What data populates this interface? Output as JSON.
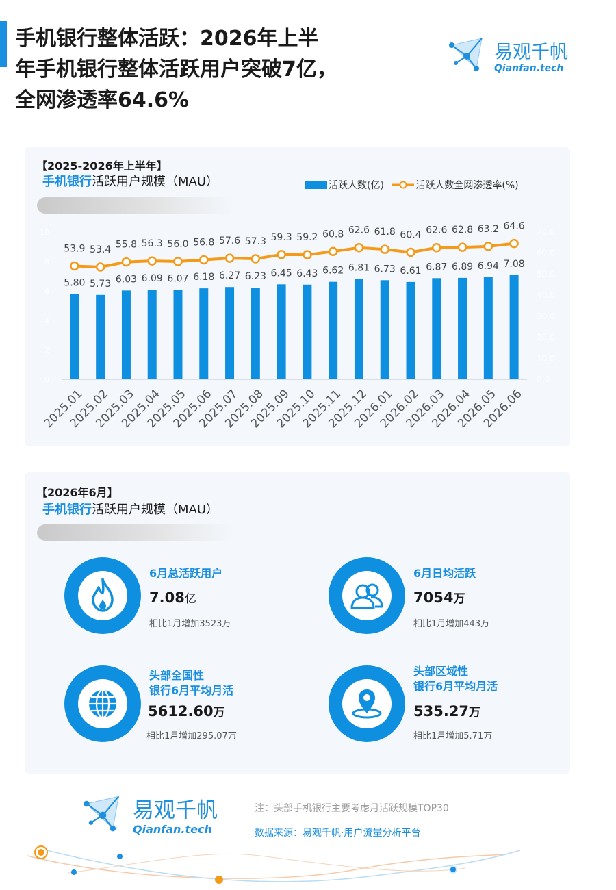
{
  "header": {
    "title_lines": [
      "手机银行整体活跃：2026年上半",
      "年手机银行整体活跃用户突破7亿，",
      "全网渗透率64.6%"
    ]
  },
  "logo": {
    "cn": "易观千帆",
    "en": "Qianfan.tech"
  },
  "panel1": {
    "tag": "【2025-2026年上半年】",
    "subtitle_highlight": "手机银行",
    "subtitle_rest": "活跃用户规模（MAU）"
  },
  "chart_data": {
    "type": "bar",
    "categories": [
      "2025.01",
      "2025.02",
      "2025.03",
      "2025.04",
      "2025.05",
      "2025.06",
      "2025.07",
      "2025.08",
      "2025.09",
      "2025.10",
      "2025.11",
      "2025.12",
      "2026.01",
      "2026.02",
      "2026.03",
      "2026.04",
      "2026.05",
      "2026.06"
    ],
    "series": [
      {
        "name": "活跃人数(亿)",
        "type": "bar",
        "axis": "left",
        "values": [
          5.8,
          5.73,
          6.03,
          6.09,
          6.07,
          6.18,
          6.27,
          6.23,
          6.45,
          6.43,
          6.62,
          6.81,
          6.73,
          6.61,
          6.87,
          6.89,
          6.94,
          7.08
        ],
        "labels": [
          "5.80",
          "5.73",
          "6.03",
          "6.09",
          "6.07",
          "6.18",
          "6.27",
          "6.23",
          "6.45",
          "6.43",
          "6.62",
          "6.81",
          "6.73",
          "6.61",
          "6.87",
          "6.89",
          "6.94",
          "7.08"
        ]
      },
      {
        "name": "活跃人数全网渗透率(%)",
        "type": "line",
        "axis": "right",
        "values": [
          53.9,
          53.4,
          55.8,
          56.3,
          56.0,
          56.8,
          57.6,
          57.3,
          59.3,
          59.2,
          60.8,
          62.6,
          61.8,
          60.4,
          62.6,
          62.8,
          63.2,
          64.6
        ],
        "labels": [
          "53.9",
          "53.4",
          "55.8",
          "56.3",
          "56.0",
          "56.8",
          "57.6",
          "57.3",
          "59.3",
          "59.2",
          "60.8",
          "62.6",
          "61.8",
          "60.4",
          "62.6",
          "62.8",
          "63.2",
          "64.6"
        ]
      }
    ],
    "ylim": [
      0,
      10
    ],
    "yticks": [
      "0",
      "2",
      "4",
      "6",
      "8",
      "10"
    ],
    "y2lim": [
      0,
      70
    ],
    "y2ticks": [
      "0.0",
      "10.0",
      "20.0",
      "30.0",
      "40.0",
      "50.0",
      "60.0",
      "70.0"
    ],
    "legend": "top-right",
    "grid": false,
    "colors": {
      "bar": "#0f8fe0",
      "line": "#f59a18",
      "marker_fill": "#ffffff"
    }
  },
  "panel2": {
    "tag": "【2026年6月】",
    "subtitle_highlight": "手机银行",
    "subtitle_rest": "活跃用户规模（MAU）",
    "stats": [
      {
        "label": "6月总活跃用户",
        "value": "7.08",
        "unit": "亿",
        "compare": "相比1月增加3523万",
        "icon": "flame-icon"
      },
      {
        "label": "6月日均活跃",
        "value": "7054",
        "unit": "万",
        "compare": "相比1月增加443万",
        "icon": "users-icon"
      },
      {
        "label_line1": "头部全国性",
        "label_line2": "银行6月平均月活",
        "value": "5612.60",
        "unit": "万",
        "compare": "相比1月增加295.07万",
        "icon": "globe-icon"
      },
      {
        "label_line1": "头部区域性",
        "label_line2": "银行6月平均月活",
        "value": "535.27",
        "unit": "万",
        "compare": "相比1月增加5.71万",
        "icon": "location-pin-icon"
      }
    ]
  },
  "footer": {
    "note": "注：头部手机银行主要考虑月活跃规模TOP30",
    "source": "数据来源：易观千帆·用户流量分析平台"
  },
  "colors": {
    "accent": "#1a8fe0",
    "bar": "#0f8fe0",
    "line": "#f59a18",
    "panel_bg": "#f4f8fd"
  }
}
